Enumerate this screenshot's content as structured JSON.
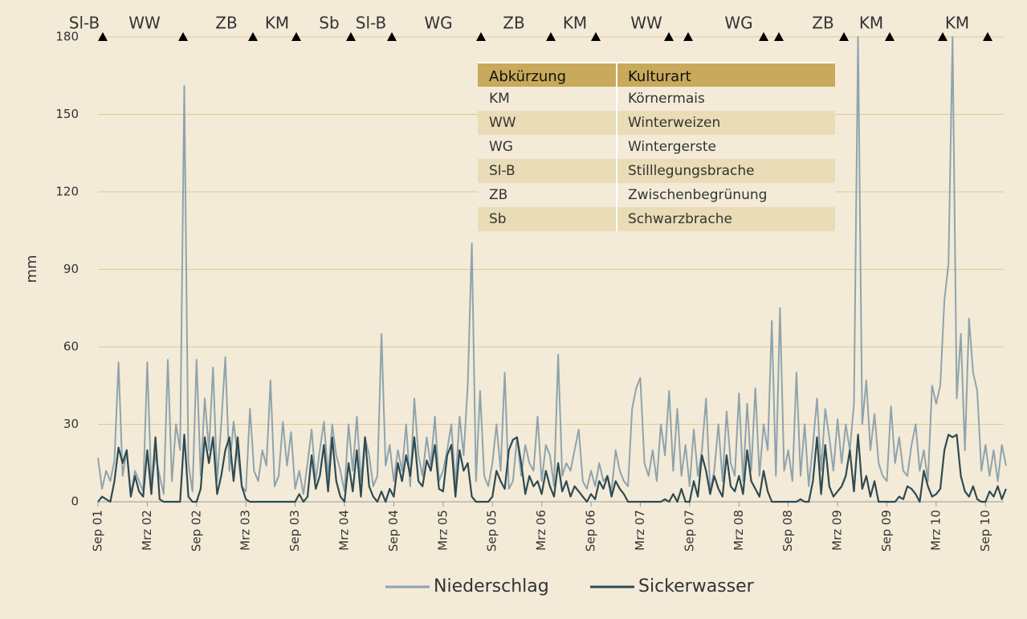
{
  "chart_data": {
    "type": "line",
    "y_label": "mm",
    "ylim": [
      0,
      180
    ],
    "yticks": [
      0,
      30,
      60,
      90,
      120,
      150,
      180
    ],
    "grid": true,
    "legend": "bottom",
    "categories": [
      "Sep 01",
      null,
      null,
      null,
      null,
      null,
      null,
      null,
      null,
      null,
      null,
      null,
      "Mrz 02",
      null,
      null,
      null,
      null,
      null,
      null,
      null,
      null,
      null,
      null,
      null,
      "Sep 02",
      null,
      null,
      null,
      null,
      null,
      null,
      null,
      null,
      null,
      null,
      null,
      "Mrz 03",
      null,
      null,
      null,
      null,
      null,
      null,
      null,
      null,
      null,
      null,
      null,
      "Sep 03",
      null,
      null,
      null,
      null,
      null,
      null,
      null,
      null,
      null,
      null,
      null,
      "Mrz 04",
      null,
      null,
      null,
      null,
      null,
      null,
      null,
      null,
      null,
      null,
      null,
      "Sep 04",
      null,
      null,
      null,
      null,
      null,
      null,
      null,
      null,
      null,
      null,
      null,
      "Mrz 05",
      null,
      null,
      null,
      null,
      null,
      null,
      null,
      null,
      null,
      null,
      null,
      "Sep 05",
      null,
      null,
      null,
      null,
      null,
      null,
      null,
      null,
      null,
      null,
      null,
      "Mrz 06",
      null,
      null,
      null,
      null,
      null,
      null,
      null,
      null,
      null,
      null,
      null,
      "Sep 06",
      null,
      null,
      null,
      null,
      null,
      null,
      null,
      null,
      null,
      null,
      null,
      "Mrz 07",
      null,
      null,
      null,
      null,
      null,
      null,
      null,
      null,
      null,
      null,
      null,
      "Sep 07",
      null,
      null,
      null,
      null,
      null,
      null,
      null,
      null,
      null,
      null,
      null,
      "Mrz 08",
      null,
      null,
      null,
      null,
      null,
      null,
      null,
      null,
      null,
      null,
      null,
      "Sep 08",
      null,
      null,
      null,
      null,
      null,
      null,
      null,
      null,
      null,
      null,
      null,
      "Mrz 09",
      null,
      null,
      null,
      null,
      null,
      null,
      null,
      null,
      null,
      null,
      null,
      "Sep 09",
      null,
      null,
      null,
      null,
      null,
      null,
      null,
      null,
      null,
      null,
      null,
      "Mrz 10",
      null,
      null,
      null,
      null,
      null,
      null,
      null,
      null,
      null,
      null,
      null,
      "Sep 10",
      null,
      null,
      null,
      null,
      null
    ],
    "series": [
      {
        "name": "Niederschlag",
        "color": "#8fa3ad",
        "values": [
          17,
          5,
          12,
          8,
          16,
          54,
          10,
          20,
          3,
          12,
          8,
          4,
          54,
          6,
          18,
          10,
          3,
          55,
          8,
          30,
          20,
          161,
          15,
          4,
          55,
          10,
          40,
          20,
          52,
          8,
          30,
          56,
          12,
          31,
          18,
          6,
          4,
          36,
          12,
          8,
          20,
          14,
          47,
          6,
          10,
          31,
          14,
          27,
          5,
          12,
          3,
          15,
          28,
          8,
          20,
          31,
          10,
          30,
          18,
          12,
          4,
          30,
          12,
          33,
          8,
          25,
          18,
          6,
          10,
          65,
          14,
          22,
          8,
          20,
          12,
          30,
          6,
          40,
          18,
          10,
          25,
          14,
          33,
          8,
          12,
          20,
          30,
          6,
          33,
          18,
          45,
          100,
          8,
          43,
          10,
          6,
          15,
          30,
          12,
          50,
          5,
          8,
          25,
          10,
          22,
          15,
          12,
          33,
          8,
          22,
          18,
          6,
          57,
          10,
          15,
          12,
          20,
          28,
          8,
          5,
          12,
          6,
          15,
          8,
          10,
          4,
          20,
          12,
          8,
          6,
          36,
          44,
          48,
          15,
          10,
          20,
          8,
          30,
          18,
          43,
          12,
          36,
          10,
          22,
          6,
          28,
          10,
          20,
          40,
          4,
          12,
          30,
          8,
          35,
          15,
          10,
          42,
          8,
          38,
          12,
          44,
          10,
          30,
          20,
          70,
          10,
          75,
          12,
          20,
          8,
          50,
          10,
          30,
          6,
          22,
          40,
          12,
          36,
          25,
          12,
          32,
          15,
          30,
          20,
          38,
          180,
          30,
          47,
          20,
          34,
          15,
          10,
          8,
          37,
          15,
          25,
          12,
          10,
          22,
          30,
          12,
          20,
          8,
          45,
          38,
          45,
          78,
          92,
          180,
          40,
          65,
          20,
          71,
          50,
          43,
          12,
          22,
          10,
          20,
          8,
          22,
          14
        ]
      },
      {
        "name": "Sickerwasser",
        "color": "#2e4a52",
        "values": [
          0,
          2,
          1,
          0,
          8,
          21,
          15,
          20,
          2,
          10,
          4,
          2,
          20,
          3,
          25,
          1,
          0,
          0,
          0,
          0,
          0,
          26,
          2,
          0,
          0,
          5,
          25,
          15,
          25,
          3,
          10,
          20,
          25,
          8,
          25,
          6,
          1,
          0,
          0,
          0,
          0,
          0,
          0,
          0,
          0,
          0,
          0,
          0,
          0,
          3,
          0,
          2,
          18,
          5,
          10,
          22,
          4,
          25,
          8,
          2,
          0,
          15,
          4,
          20,
          2,
          25,
          6,
          2,
          0,
          4,
          0,
          5,
          2,
          15,
          8,
          18,
          10,
          25,
          8,
          6,
          16,
          12,
          22,
          5,
          4,
          18,
          22,
          2,
          20,
          12,
          15,
          2,
          0,
          0,
          0,
          0,
          2,
          12,
          8,
          5,
          20,
          24,
          25,
          15,
          3,
          10,
          6,
          8,
          3,
          12,
          6,
          2,
          15,
          4,
          8,
          2,
          6,
          4,
          2,
          0,
          3,
          1,
          8,
          5,
          10,
          2,
          8,
          5,
          3,
          0,
          0,
          0,
          0,
          0,
          0,
          0,
          0,
          0,
          1,
          0,
          3,
          0,
          5,
          0,
          0,
          8,
          2,
          18,
          12,
          3,
          10,
          5,
          2,
          18,
          6,
          4,
          10,
          3,
          20,
          8,
          5,
          2,
          12,
          4,
          0,
          0,
          0,
          0,
          0,
          0,
          0,
          1,
          0,
          0,
          8,
          25,
          3,
          22,
          6,
          2,
          4,
          6,
          10,
          20,
          4,
          26,
          5,
          10,
          2,
          8,
          0,
          0,
          0,
          0,
          0,
          2,
          1,
          6,
          5,
          3,
          0,
          12,
          6,
          2,
          3,
          5,
          20,
          26,
          25,
          26,
          10,
          4,
          2,
          6,
          1,
          0,
          0,
          4,
          2,
          6,
          1,
          5
        ]
      }
    ],
    "crop_labels": [
      "Sl-B",
      "WW",
      "ZB",
      "KM",
      "Sb",
      "Sl-B",
      "WG",
      "ZB",
      "KM",
      "WW",
      "WG",
      "ZB",
      "KM",
      "KM"
    ]
  },
  "table": {
    "header": [
      "Abkürzung",
      "Kulturart"
    ],
    "rows": [
      [
        "KM",
        "Körnermais"
      ],
      [
        "WW",
        "Winterweizen"
      ],
      [
        "WG",
        "Wintergerste"
      ],
      [
        "Sl-B",
        "Stilllegungsbrache"
      ],
      [
        "ZB",
        "Zwischenbegrünung"
      ],
      [
        "Sb",
        "Schwarzbrache"
      ]
    ]
  }
}
